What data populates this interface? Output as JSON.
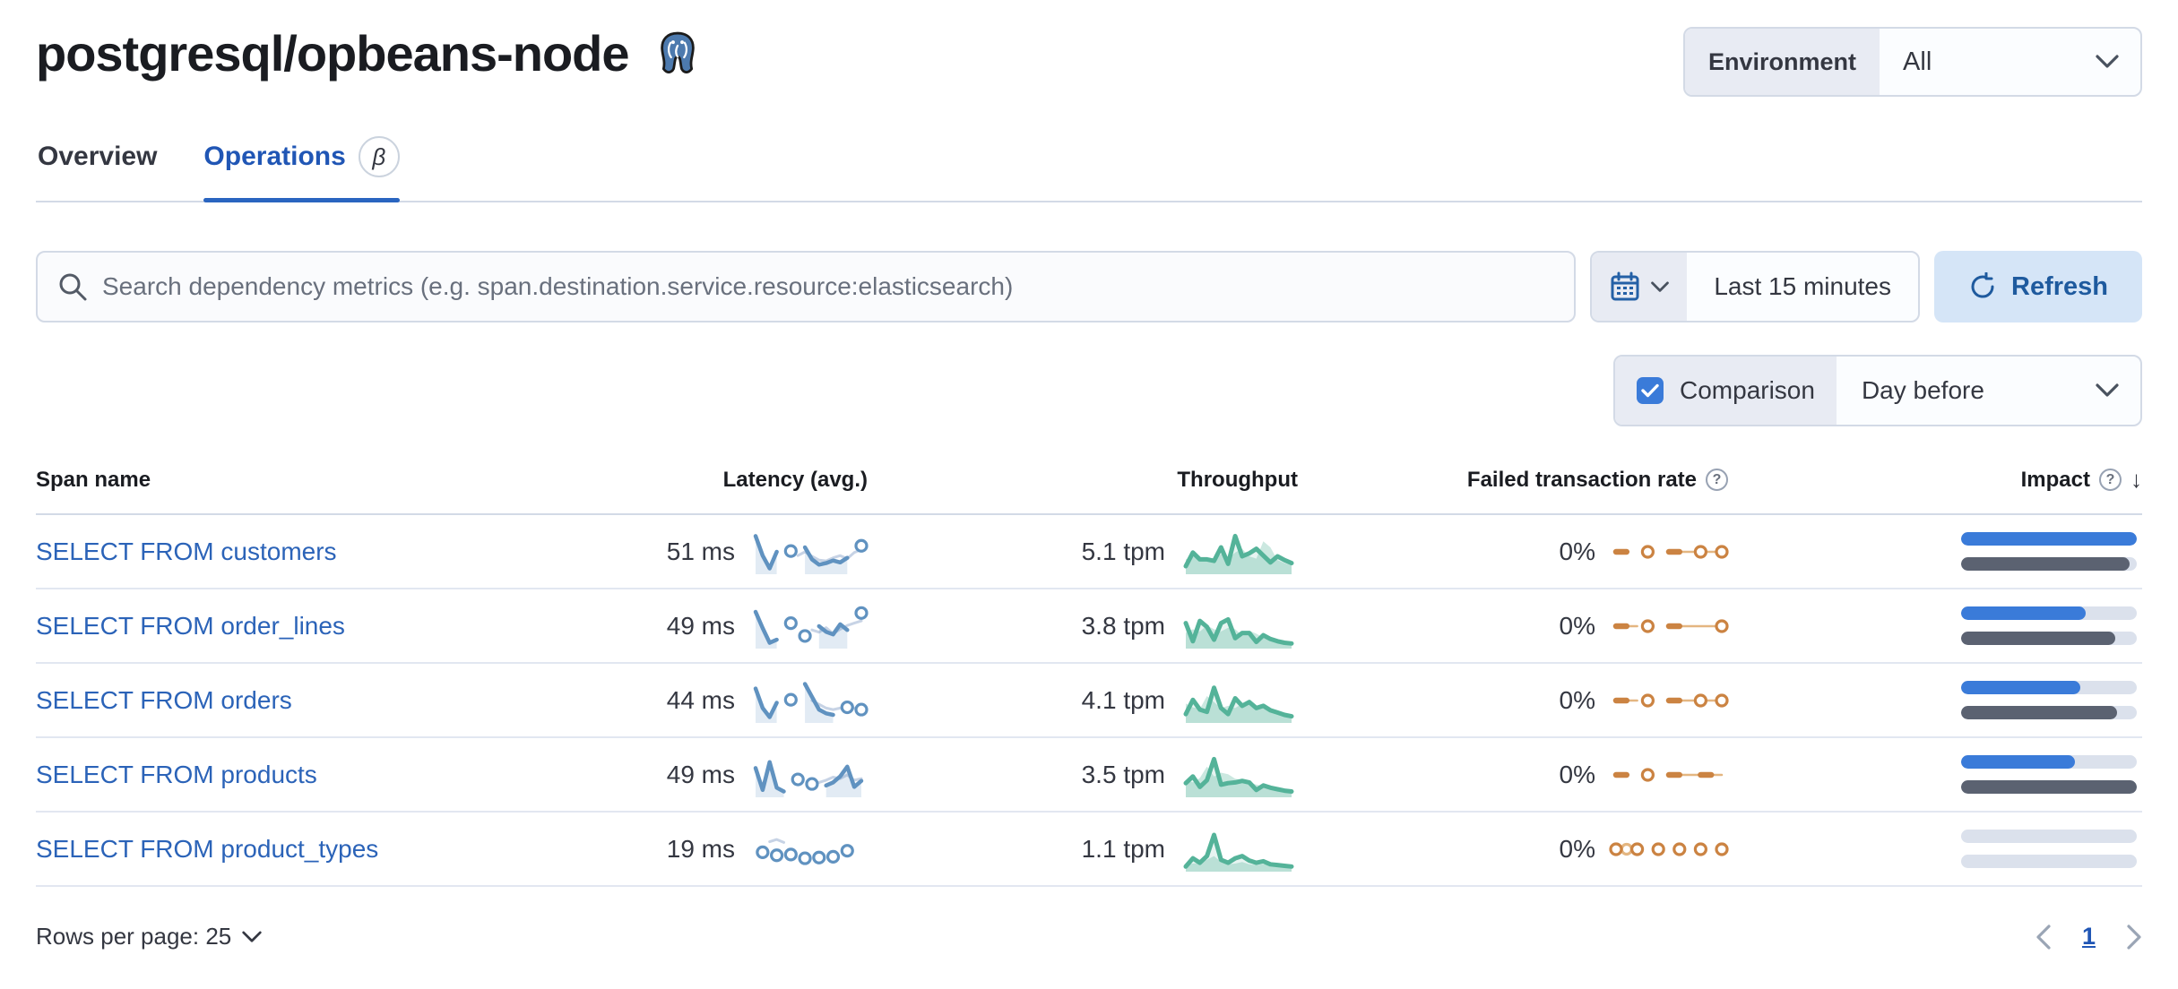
{
  "page": {
    "title": "postgresql/opbeans-node"
  },
  "environment": {
    "label": "Environment",
    "value": "All"
  },
  "tabs": [
    {
      "label": "Overview",
      "active": false
    },
    {
      "label": "Operations",
      "active": true,
      "badge": "β"
    }
  ],
  "search": {
    "placeholder": "Search dependency metrics (e.g. span.destination.service.resource:elasticsearch)"
  },
  "time": {
    "range": "Last 15 minutes",
    "refresh_label": "Refresh"
  },
  "comparison": {
    "label": "Comparison",
    "checked": true,
    "value": "Day before"
  },
  "icons": {
    "help": "?",
    "sort_desc": "↓"
  },
  "table": {
    "columns": {
      "span_name": "Span name",
      "latency": "Latency (avg.)",
      "throughput": "Throughput",
      "failed_rate": "Failed transaction rate",
      "impact": "Impact"
    },
    "sort": {
      "column": "Impact",
      "direction": "desc"
    }
  },
  "rows": [
    {
      "name": "SELECT FROM customers",
      "latency": "51 ms",
      "throughput": "5.1 tpm",
      "failed_rate": "0%",
      "impact": {
        "current": 100,
        "previous": 96
      },
      "sparks": {
        "latency": {
          "current": [
            92,
            40,
            6,
            50,
            null,
            52,
            null,
            62,
            30,
            16,
            20,
            27,
            22,
            34,
            null,
            66
          ],
          "comparison": [
            null,
            null,
            null,
            null,
            null,
            null,
            40,
            50,
            38,
            28,
            26,
            34,
            40,
            32,
            48,
            56
          ]
        },
        "throughput": {
          "current": [
            12,
            48,
            30,
            30,
            26,
            62,
            18,
            92,
            38,
            46,
            58,
            40,
            22,
            38,
            28,
            20
          ],
          "comparison": [
            30,
            38,
            32,
            30,
            30,
            44,
            30,
            48,
            58,
            38,
            32,
            78,
            62,
            28,
            20,
            14
          ]
        },
        "failed": {
          "current": [
            50,
            50,
            null,
            50,
            null,
            50,
            50,
            null,
            50,
            null,
            50
          ],
          "comparison": [
            null,
            null,
            null,
            null,
            null,
            50,
            50,
            50,
            50,
            50,
            50
          ]
        }
      }
    },
    {
      "name": "SELECT FROM order_lines",
      "latency": "49 ms",
      "throughput": "3.8 tpm",
      "failed_rate": "0%",
      "impact": {
        "current": 71,
        "previous": 88
      },
      "sparks": {
        "latency": {
          "current": [
            88,
            45,
            6,
            14,
            null,
            58,
            null,
            24,
            null,
            50,
            35,
            28,
            55,
            40,
            null,
            85
          ],
          "comparison": [
            null,
            null,
            null,
            null,
            null,
            null,
            null,
            null,
            40,
            34,
            46,
            30,
            42,
            52,
            58,
            64
          ]
        },
        "throughput": {
          "current": [
            58,
            10,
            64,
            48,
            14,
            58,
            68,
            18,
            32,
            32,
            8,
            26,
            16,
            10,
            6,
            4
          ],
          "comparison": [
            32,
            42,
            36,
            52,
            42,
            36,
            46,
            42,
            26,
            38,
            30,
            20,
            16,
            12,
            8,
            6
          ]
        },
        "failed": {
          "current": [
            50,
            50,
            null,
            50,
            null,
            50,
            50,
            null,
            null,
            null,
            50
          ],
          "comparison": [
            50,
            50,
            50,
            null,
            null,
            null,
            50,
            50,
            50,
            50,
            50
          ]
        }
      }
    },
    {
      "name": "SELECT FROM orders",
      "latency": "44 ms",
      "throughput": "4.1 tpm",
      "failed_rate": "0%",
      "impact": {
        "current": 68,
        "previous": 89
      },
      "sparks": {
        "latency": {
          "current": [
            82,
            30,
            6,
            44,
            null,
            52,
            null,
            94,
            60,
            26,
            16,
            12,
            null,
            32,
            null,
            26
          ],
          "comparison": [
            null,
            null,
            null,
            null,
            null,
            null,
            null,
            null,
            50,
            40,
            30,
            26,
            30,
            36,
            30,
            24
          ]
        },
        "throughput": {
          "current": [
            14,
            52,
            26,
            20,
            84,
            30,
            14,
            56,
            36,
            46,
            30,
            36,
            24,
            18,
            12,
            8
          ],
          "comparison": [
            42,
            32,
            28,
            62,
            46,
            30,
            36,
            30,
            42,
            52,
            36,
            30,
            22,
            16,
            10,
            8
          ]
        },
        "failed": {
          "current": [
            50,
            50,
            null,
            50,
            null,
            50,
            50,
            null,
            50,
            null,
            50
          ],
          "comparison": [
            50,
            50,
            50,
            null,
            null,
            null,
            50,
            50,
            50,
            50,
            50
          ]
        }
      }
    },
    {
      "name": "SELECT FROM products",
      "latency": "49 ms",
      "throughput": "3.5 tpm",
      "failed_rate": "0%",
      "impact": {
        "current": 65,
        "previous": 100
      },
      "sparks": {
        "latency": {
          "current": [
            68,
            10,
            84,
            16,
            6,
            null,
            38,
            null,
            26,
            null,
            22,
            30,
            46,
            72,
            18,
            34
          ],
          "comparison": [
            null,
            null,
            null,
            null,
            null,
            null,
            null,
            null,
            null,
            30,
            36,
            44,
            40,
            50,
            36,
            40
          ]
        },
        "throughput": {
          "current": [
            28,
            46,
            18,
            36,
            92,
            24,
            28,
            30,
            34,
            30,
            10,
            22,
            16,
            12,
            8,
            6
          ],
          "comparison": [
            36,
            30,
            42,
            72,
            46,
            56,
            52,
            40,
            36,
            30,
            24,
            20,
            14,
            10,
            8,
            6
          ]
        },
        "failed": {
          "current": [
            50,
            50,
            null,
            50,
            null,
            50,
            50,
            null,
            50,
            50,
            null
          ],
          "comparison": [
            null,
            null,
            null,
            null,
            null,
            50,
            50,
            50,
            50,
            50,
            50
          ]
        }
      }
    },
    {
      "name": "SELECT FROM product_types",
      "latency": "19 ms",
      "throughput": "1.1 tpm",
      "failed_rate": "0%",
      "impact": {
        "current": 0,
        "previous": 0
      },
      "sparks": {
        "latency": {
          "current": [
            null,
            42,
            null,
            34,
            null,
            36,
            null,
            26,
            null,
            28,
            null,
            30,
            null,
            46,
            null,
            null
          ],
          "comparison": [
            null,
            null,
            70,
            76,
            68,
            null,
            null,
            null,
            null,
            null,
            null,
            null,
            null,
            null,
            null,
            null
          ]
        },
        "throughput": {
          "current": [
            4,
            26,
            14,
            32,
            88,
            22,
            14,
            26,
            32,
            20,
            14,
            18,
            10,
            8,
            6,
            4
          ],
          "comparison": [
            10,
            12,
            14,
            22,
            32,
            16,
            10,
            12,
            16,
            10,
            8,
            10,
            8,
            6,
            5,
            4
          ]
        },
        "failed": {
          "current": [
            50,
            null,
            50,
            null,
            50,
            null,
            50,
            null,
            50,
            null,
            50
          ],
          "comparison": [
            null,
            50,
            null,
            null,
            null,
            null,
            null,
            null,
            null,
            null,
            null
          ]
        }
      }
    }
  ],
  "pagination": {
    "rows_per_page_label": "Rows per page: 25",
    "page": "1"
  },
  "colors": {
    "latency_line": "#6092C0",
    "latency_comparison": "#c7d3e5",
    "throughput_line": "#54B399",
    "failed_line": "#CB8342",
    "impact_current": "#3a7bd9",
    "impact_previous": "#5b6271",
    "impact_track": "#dbe1ec",
    "primary": "#2056b5"
  }
}
